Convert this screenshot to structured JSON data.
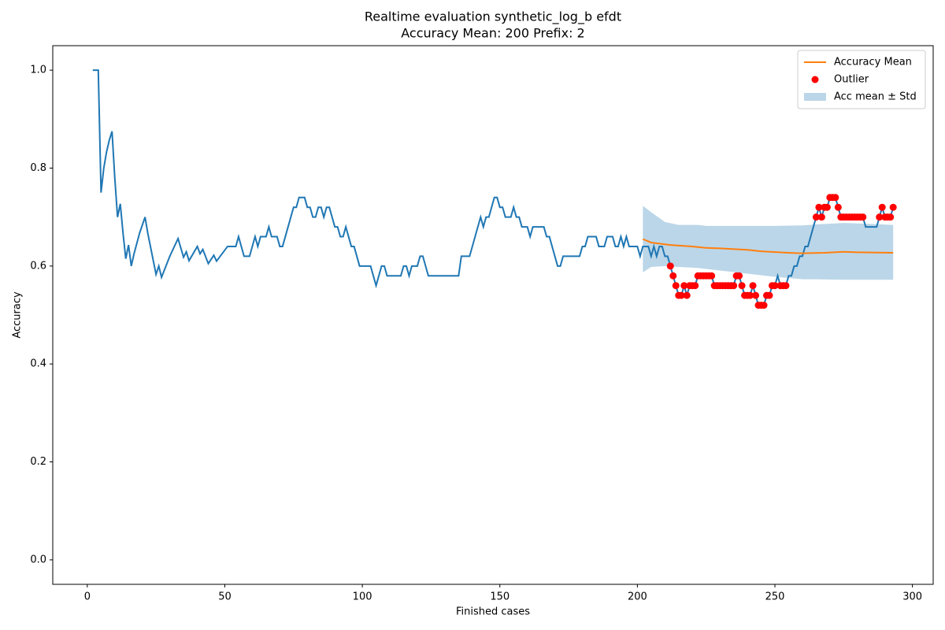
{
  "chart_data": {
    "type": "line",
    "title": "Realtime evaluation synthetic_log_b efdt",
    "subtitle": "Accuracy Mean: 200 Prefix: 2",
    "xlabel": "Finished cases",
    "ylabel": "Accuracy",
    "xlim": [
      -12.55,
      307.55
    ],
    "ylim": [
      -0.05,
      1.05
    ],
    "xticks": [
      0,
      50,
      100,
      150,
      200,
      250,
      300
    ],
    "yticks": [
      {
        "value": 0,
        "label": "0.0"
      },
      {
        "value": 0.2,
        "label": "0.2"
      },
      {
        "value": 0.4,
        "label": "0.4"
      },
      {
        "value": 0.6,
        "label": "0.6"
      },
      {
        "value": 0.8,
        "label": "0.8"
      },
      {
        "value": 1,
        "label": "1.0"
      }
    ],
    "legend": "upper right",
    "series": [
      {
        "style": "line",
        "color": "#1f77b4",
        "x": [
          2,
          4,
          5,
          6,
          7,
          8,
          9,
          10,
          11,
          12,
          13,
          14,
          15,
          16,
          17,
          19,
          21,
          22,
          25,
          26,
          27,
          30,
          33,
          35,
          36,
          37,
          40,
          41,
          42,
          44,
          46,
          47,
          51,
          54,
          55,
          57,
          59,
          61,
          62,
          63,
          65,
          66,
          67,
          69,
          70,
          71,
          75,
          76,
          77,
          79,
          80,
          81,
          82,
          83,
          84,
          85,
          86,
          87,
          88,
          90,
          91,
          92,
          93,
          94,
          96,
          97,
          99,
          103,
          105,
          107,
          108,
          109,
          114,
          115,
          116,
          117,
          118,
          120,
          121,
          122,
          124,
          135,
          136,
          139,
          143,
          144,
          145,
          146,
          148,
          149,
          150,
          151,
          152,
          154,
          155,
          156,
          157,
          158,
          160,
          161,
          162,
          166,
          167,
          168,
          171,
          172,
          173,
          179,
          180,
          181,
          182,
          185,
          186,
          188,
          189,
          191,
          192,
          193,
          194,
          195,
          196,
          197,
          200,
          201,
          202,
          204,
          205,
          206,
          207,
          208,
          209,
          210,
          211,
          212,
          213,
          214,
          215,
          216,
          217,
          218,
          219,
          220,
          221,
          222,
          223,
          224,
          225,
          226,
          227,
          228,
          229,
          230,
          231,
          232,
          233,
          234,
          235,
          236,
          237,
          238,
          239,
          240,
          241,
          242,
          243,
          244,
          245,
          246,
          247,
          248,
          249,
          250,
          251,
          252,
          253,
          254,
          255,
          256,
          257,
          258,
          259,
          260,
          261,
          262,
          263,
          264,
          265,
          266,
          267,
          268,
          269,
          270,
          271,
          272,
          273,
          274,
          275,
          276,
          277,
          278,
          279,
          280,
          281,
          282,
          283,
          287,
          288,
          289,
          290,
          291,
          292,
          293
        ],
        "values": [
          1.0,
          1.0,
          0.75,
          0.8,
          0.833,
          0.857,
          0.875,
          0.78,
          0.7,
          0.727,
          0.667,
          0.615,
          0.643,
          0.6,
          0.625,
          0.667,
          0.7,
          0.667,
          0.583,
          0.6,
          0.577,
          0.62,
          0.656,
          0.618,
          0.629,
          0.611,
          0.64,
          0.625,
          0.634,
          0.605,
          0.622,
          0.61,
          0.64,
          0.64,
          0.66,
          0.62,
          0.62,
          0.66,
          0.64,
          0.66,
          0.66,
          0.68,
          0.66,
          0.66,
          0.64,
          0.64,
          0.72,
          0.72,
          0.74,
          0.74,
          0.72,
          0.72,
          0.7,
          0.7,
          0.72,
          0.72,
          0.7,
          0.72,
          0.72,
          0.68,
          0.68,
          0.66,
          0.66,
          0.68,
          0.64,
          0.64,
          0.6,
          0.6,
          0.56,
          0.6,
          0.6,
          0.58,
          0.58,
          0.6,
          0.6,
          0.58,
          0.6,
          0.6,
          0.62,
          0.62,
          0.58,
          0.58,
          0.62,
          0.62,
          0.7,
          0.68,
          0.7,
          0.7,
          0.74,
          0.74,
          0.72,
          0.72,
          0.7,
          0.7,
          0.72,
          0.7,
          0.7,
          0.68,
          0.68,
          0.66,
          0.68,
          0.68,
          0.66,
          0.66,
          0.6,
          0.6,
          0.62,
          0.62,
          0.64,
          0.64,
          0.66,
          0.66,
          0.64,
          0.64,
          0.66,
          0.66,
          0.64,
          0.64,
          0.66,
          0.64,
          0.66,
          0.64,
          0.64,
          0.62,
          0.64,
          0.64,
          0.62,
          0.64,
          0.62,
          0.64,
          0.64,
          0.62,
          0.62,
          0.6,
          0.58,
          0.56,
          0.54,
          0.54,
          0.56,
          0.54,
          0.56,
          0.56,
          0.56,
          0.58,
          0.58,
          0.58,
          0.58,
          0.58,
          0.58,
          0.56,
          0.56,
          0.56,
          0.56,
          0.56,
          0.56,
          0.56,
          0.56,
          0.58,
          0.58,
          0.56,
          0.54,
          0.54,
          0.54,
          0.56,
          0.54,
          0.52,
          0.52,
          0.52,
          0.54,
          0.54,
          0.56,
          0.56,
          0.58,
          0.56,
          0.56,
          0.56,
          0.58,
          0.58,
          0.6,
          0.6,
          0.62,
          0.62,
          0.64,
          0.64,
          0.66,
          0.68,
          0.7,
          0.72,
          0.7,
          0.72,
          0.72,
          0.74,
          0.74,
          0.74,
          0.72,
          0.7,
          0.7,
          0.7,
          0.7,
          0.7,
          0.7,
          0.7,
          0.7,
          0.7,
          0.68,
          0.68,
          0.7,
          0.72,
          0.7,
          0.7,
          0.7,
          0.72
        ]
      },
      {
        "name": "Accuracy Mean",
        "style": "line",
        "color": "#ff7f0e",
        "x": [
          202,
          205,
          212,
          220,
          225,
          230,
          240,
          245,
          255,
          260,
          268,
          275,
          280,
          293
        ],
        "values": [
          0.655,
          0.648,
          0.643,
          0.64,
          0.637,
          0.636,
          0.633,
          0.63,
          0.627,
          0.626,
          0.627,
          0.629,
          0.628,
          0.627
        ]
      },
      {
        "name": "Outlier",
        "style": "marker",
        "color": "#ff0000",
        "x": [
          212,
          213,
          214,
          215,
          216,
          217,
          218,
          219,
          220,
          221,
          222,
          223,
          224,
          225,
          226,
          227,
          228,
          229,
          230,
          231,
          232,
          233,
          234,
          235,
          236,
          237,
          238,
          239,
          240,
          241,
          242,
          243,
          244,
          245,
          246,
          247,
          248,
          249,
          250,
          252,
          253,
          254,
          265,
          266,
          267,
          268,
          269,
          270,
          271,
          272,
          273,
          274,
          275,
          276,
          277,
          278,
          279,
          280,
          281,
          282,
          288,
          289,
          290,
          291,
          292,
          293
        ],
        "values": [
          0.6,
          0.58,
          0.56,
          0.54,
          0.54,
          0.56,
          0.54,
          0.56,
          0.56,
          0.56,
          0.58,
          0.58,
          0.58,
          0.58,
          0.58,
          0.58,
          0.56,
          0.56,
          0.56,
          0.56,
          0.56,
          0.56,
          0.56,
          0.56,
          0.58,
          0.58,
          0.56,
          0.54,
          0.54,
          0.54,
          0.56,
          0.54,
          0.52,
          0.52,
          0.52,
          0.54,
          0.54,
          0.56,
          0.56,
          0.56,
          0.56,
          0.56,
          0.7,
          0.72,
          0.7,
          0.72,
          0.72,
          0.74,
          0.74,
          0.74,
          0.72,
          0.7,
          0.7,
          0.7,
          0.7,
          0.7,
          0.7,
          0.7,
          0.7,
          0.7,
          0.7,
          0.72,
          0.7,
          0.7,
          0.7,
          0.72
        ]
      },
      {
        "name": "Acc mean ± Std",
        "style": "band",
        "color": "#1f77b4",
        "x": [
          202,
          205,
          210,
          215,
          222,
          225,
          250,
          260,
          265,
          275,
          285,
          293
        ],
        "upper": [
          0.723,
          0.71,
          0.69,
          0.684,
          0.684,
          0.682,
          0.682,
          0.683,
          0.685,
          0.688,
          0.686,
          0.684
        ],
        "lower": [
          0.587,
          0.598,
          0.6,
          0.598,
          0.596,
          0.594,
          0.578,
          0.573,
          0.573,
          0.572,
          0.572,
          0.572
        ]
      }
    ]
  }
}
